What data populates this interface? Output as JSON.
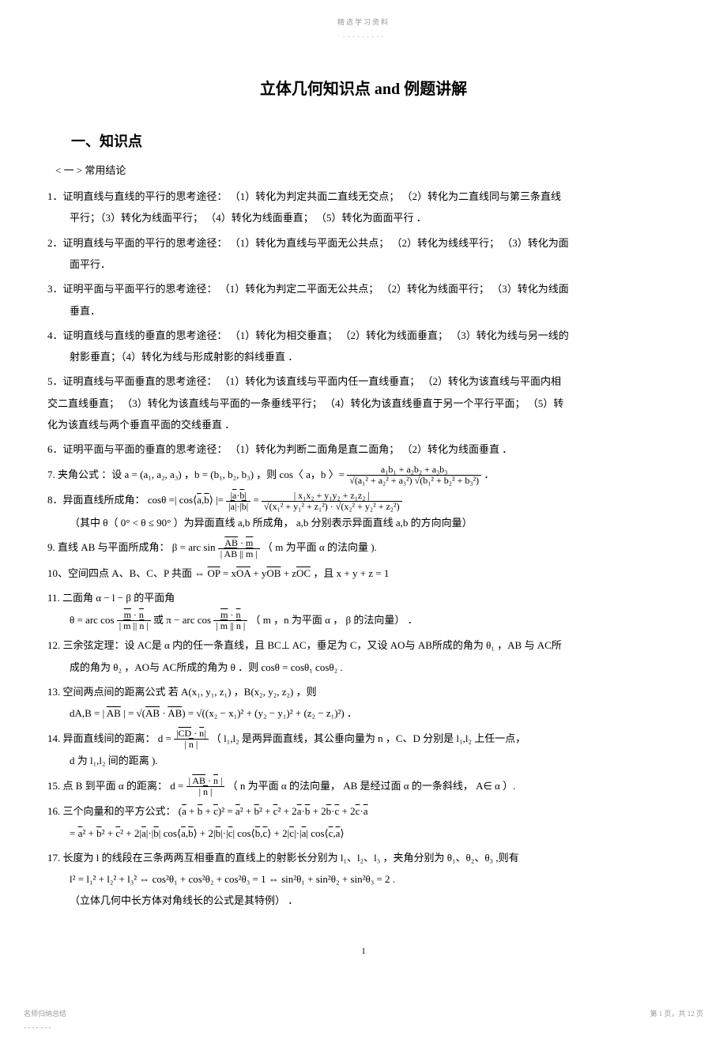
{
  "watermark": {
    "line1": "精选学习资料",
    "line2": "- - - - - - - - -"
  },
  "title": "立体几何知识点  and 例题讲解",
  "section1": "一、知识点",
  "subsection": "< 一 > 常用结论",
  "p1": "1．证明直线与直线的平行的思考途径：  （1）转化为判定共面二直线无交点；  （2）转化为二直线同与第三条直线",
  "p1b": "平行；（3）转化为线面平行；  （4）转化为线面垂直；  （5）转化为面面平行  ．",
  "p2": "2．证明直线与平面的平行的思考途径：  （1）转化为直线与平面无公共点；  （2）转化为线线平行；  （3）转化为面",
  "p2b": "面平行．",
  "p3": "3．证明平面与平面平行的思考途径：  （1）转化为判定二平面无公共点；  （2）转化为线面平行；  （3）转化为线面",
  "p3b": "垂直．",
  "p4": "4．证明直线与直线的垂直的思考途径：  （1）转化为相交垂直；  （2）转化为线面垂直；  （3）转化为线与另一线的",
  "p4b": "射影垂直；（4）转化为线与形成射影的斜线垂直  ．",
  "p5": "5．证明直线与平面垂直的思考途径：  （1）转化为该直线与平面内任一直线垂直；  （2）转化为该直线与平面内相",
  "p5b": "交二直线垂直；  （3）转化为该直线与平面的一条垂线平行；  （4）转化为该直线垂直于另一个平行平面；  （5）转",
  "p5c": "化为该直线与两个垂直平面的交线垂直  ．",
  "p6": "6．证明平面与平面的垂直的思考途径：  （1）转化为判断二面角是直二面角；  （2）转化为线面垂直  ．",
  "p7a": "7. 夹角公式  ：设  a =",
  "p7b": "，b =",
  "p7c": "，则  cos〈 a，b 〉=",
  "p8a": "8．异面直线所成角：  cosθ =| cos",
  "p8b": "|=",
  "p8c": "（其中  θ（ 0° < θ ≤ 90° ）为异面直线  a,b 所成角，  a,b 分别表示异面直线  a,b 的方向向量）",
  "p9a": "9. 直线  AB 与平面所成角：  β = arc sin",
  "p9b": "（ m 为平面  α 的法向量  ).",
  "p10": "10、空间四点  A、B、C、P 共面 ⇔",
  "p10b": "，且  x + y + z = 1",
  "p11": "11. 二面角  α − l − β 的平面角",
  "p11b": "θ = arc cos",
  "p11c": "或 π − arc cos",
  "p11d": "（ m ，n 为平面  α ， β 的法向量）  ．",
  "p12": "12. 三余弦定理：设  AC是 α 内的任一条直线，且  BC⊥ AC，垂足为  C，又设  AO与  AB所成的角为  θ₁ ，AB 与  AC所",
  "p12b": "成的角为  θ₂ ，AO与  AC所成的角为  θ ．则  cosθ = cosθ₁ cosθ₂ .",
  "p13": "13. 空间两点间的距离公式    若 A",
  "p13b": "，B",
  "p13c": "，则",
  "p13d": "dA,B =",
  "p14": "14. 异面直线间的距离：    d =",
  "p14b": "（  l₁,l₂ 是两异面直线，其公垂向量为    n ，C、D  分别是  l₁,l₂ 上任一点，",
  "p14c": "d 为  l₁,l₂ 间的距离  ).",
  "p15": "15. 点  B 到平面  α 的距离：  d =",
  "p15b": "（ n 为平面  α 的法向量，  AB 是经过面  α 的一条斜线，  A∈ α  ）.",
  "p16": "16. 三个向量和的平方公式：",
  "p17": "17.  长度为  l 的线段在三条两两互相垂直的直线上的射影长分别为    l₁、l₂、l₃ ，夹角分别为  θ₁、θ₂、θ₃ ,则有",
  "p17b": "l² = l₁² + l₂² + l₃² ⇔  cos²θ₁ + cos²θ₂ + cos²θ₃ = 1 ⇔  sin²θ₁ + sin²θ₂ + sin²θ₃ = 2 .",
  "p17c": "（立体几何中长方体对角线长的公式是其特例）  ．",
  "pagenum": "1",
  "footer_left": "名师归纳总结",
  "footer_left2": "- - - - - - -",
  "footer_right": "第  1 页，共  12 页"
}
